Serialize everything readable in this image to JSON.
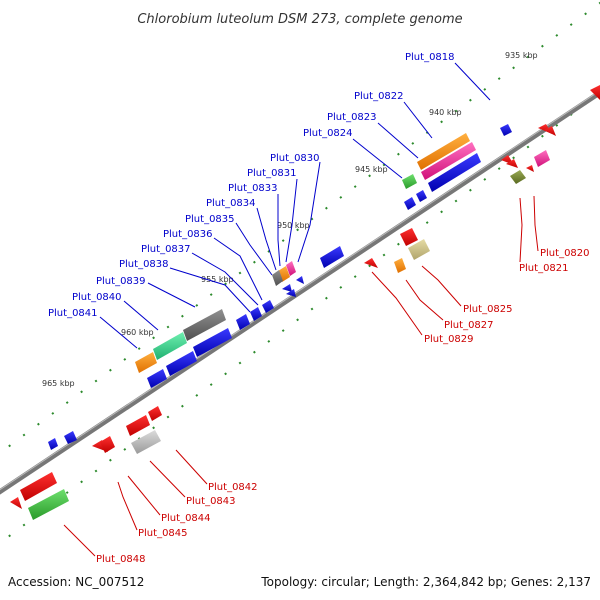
{
  "title": "Chlorobium luteolum DSM 273, complete genome",
  "footer": {
    "accession": "Accession: NC_007512",
    "summary": "Topology: circular; Length: 2,364,842 bp; Genes: 2,137"
  },
  "colors": {
    "plus_label": "#0000cc",
    "minus_label": "#cc0000",
    "backbone": "#777777",
    "tick": "#2e8b2e"
  },
  "kbp_ticks": [
    "935 kbp",
    "940 kbp",
    "945 kbp",
    "950 kbp",
    "955 kbp",
    "960 kbp",
    "965 kbp"
  ],
  "plus_labels": [
    "Plut_0818",
    "Plut_0822",
    "Plut_0823",
    "Plut_0824",
    "Plut_0830",
    "Plut_0831",
    "Plut_0833",
    "Plut_0834",
    "Plut_0835",
    "Plut_0836",
    "Plut_0837",
    "Plut_0838",
    "Plut_0839",
    "Plut_0840",
    "Plut_0841"
  ],
  "minus_labels": [
    "Plut_0820",
    "Plut_0821",
    "Plut_0825",
    "Plut_0827",
    "Plut_0829",
    "Plut_0842",
    "Plut_0843",
    "Plut_0844",
    "Plut_0845",
    "Plut_0848"
  ]
}
